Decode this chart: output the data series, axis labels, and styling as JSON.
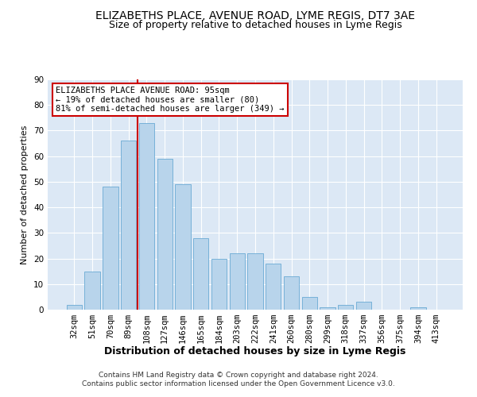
{
  "title": "ELIZABETHS PLACE, AVENUE ROAD, LYME REGIS, DT7 3AE",
  "subtitle": "Size of property relative to detached houses in Lyme Regis",
  "xlabel": "Distribution of detached houses by size in Lyme Regis",
  "ylabel": "Number of detached properties",
  "bar_color": "#b8d4eb",
  "bar_edge_color": "#6aaad4",
  "categories": [
    "32sqm",
    "51sqm",
    "70sqm",
    "89sqm",
    "108sqm",
    "127sqm",
    "146sqm",
    "165sqm",
    "184sqm",
    "203sqm",
    "222sqm",
    "241sqm",
    "260sqm",
    "280sqm",
    "299sqm",
    "318sqm",
    "337sqm",
    "356sqm",
    "375sqm",
    "394sqm",
    "413sqm"
  ],
  "values": [
    2,
    15,
    48,
    66,
    73,
    59,
    49,
    28,
    20,
    22,
    22,
    18,
    13,
    5,
    1,
    2,
    3,
    0,
    0,
    1,
    0
  ],
  "vline_x": 3.5,
  "vline_color": "#cc0000",
  "annotation_text": "ELIZABETHS PLACE AVENUE ROAD: 95sqm\n← 19% of detached houses are smaller (80)\n81% of semi-detached houses are larger (349) →",
  "annotation_box_color": "#ffffff",
  "annotation_box_edge_color": "#cc0000",
  "ylim": [
    0,
    90
  ],
  "yticks": [
    0,
    10,
    20,
    30,
    40,
    50,
    60,
    70,
    80,
    90
  ],
  "background_color": "#dce8f5",
  "fig_background_color": "#ffffff",
  "grid_color": "#ffffff",
  "footer1": "Contains HM Land Registry data © Crown copyright and database right 2024.",
  "footer2": "Contains public sector information licensed under the Open Government Licence v3.0.",
  "title_fontsize": 10,
  "subtitle_fontsize": 9,
  "xlabel_fontsize": 9,
  "ylabel_fontsize": 8,
  "tick_fontsize": 7.5,
  "annotation_fontsize": 7.5,
  "footer_fontsize": 6.5
}
